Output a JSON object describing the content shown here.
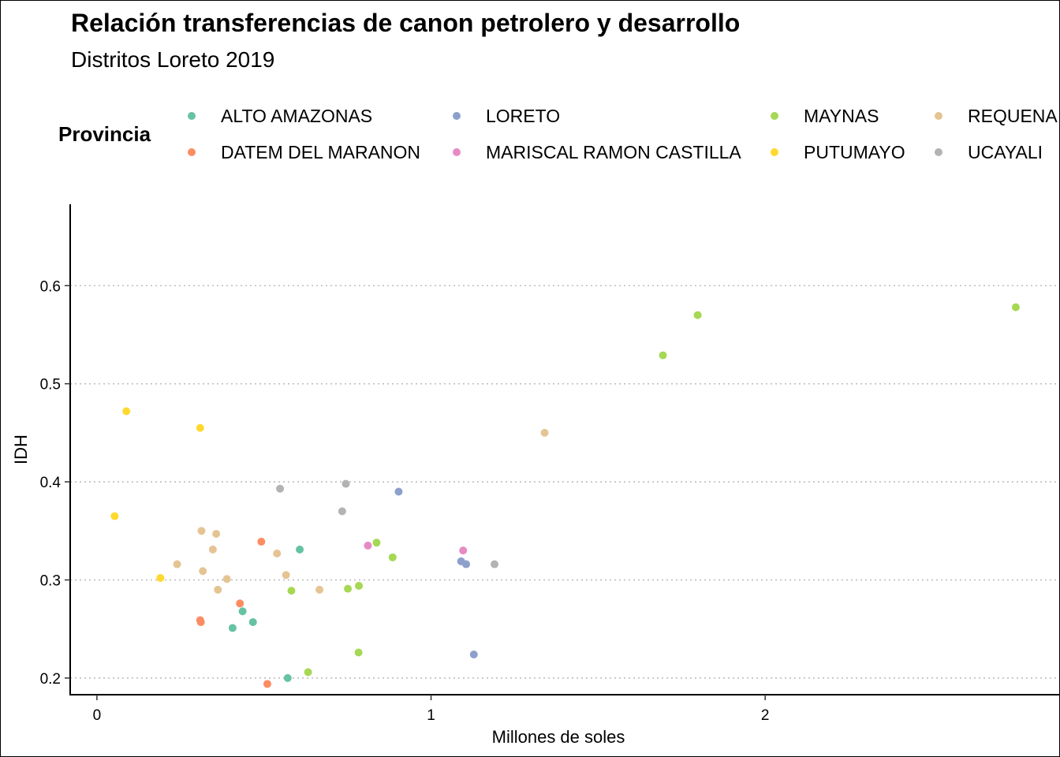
{
  "chart_data": {
    "type": "scatter",
    "title": "Relación transferencias de canon petrolero y desarrollo",
    "subtitle": "Distritos Loreto 2019",
    "xlabel": "Millones de soles",
    "ylabel": "IDH",
    "xlim": [
      -0.08,
      2.88
    ],
    "ylim": [
      0.183,
      0.683
    ],
    "xticks": [
      0,
      1,
      2
    ],
    "xtick_labels": [
      "0",
      "1",
      "2"
    ],
    "yticks": [
      0.2,
      0.3,
      0.4,
      0.5,
      0.6
    ],
    "ytick_labels": [
      "0.2",
      "0.3",
      "0.4",
      "0.5",
      "0.6"
    ],
    "grid": "horizontal dotted major",
    "legend": {
      "title": "Provincia",
      "position": "top",
      "entries": [
        {
          "name": "ALTO AMAZONAS",
          "color": "#66C2A5"
        },
        {
          "name": "DATEM DEL MARANON",
          "color": "#FC8D62"
        },
        {
          "name": "LORETO",
          "color": "#8DA0CB"
        },
        {
          "name": "MARISCAL RAMON CASTILLA",
          "color": "#E78AC3"
        },
        {
          "name": "MAYNAS",
          "color": "#A6D854"
        },
        {
          "name": "PUTUMAYO",
          "color": "#FFD92F"
        },
        {
          "name": "REQUENA",
          "color": "#E5C494"
        },
        {
          "name": "UCAYALI",
          "color": "#B3B3B3"
        }
      ]
    },
    "series": [
      {
        "name": "ALTO AMAZONAS",
        "color": "#66C2A5",
        "points": [
          [
            0.406,
            0.251
          ],
          [
            0.436,
            0.268
          ],
          [
            0.467,
            0.257
          ],
          [
            0.571,
            0.2
          ],
          [
            0.607,
            0.331
          ]
        ]
      },
      {
        "name": "DATEM DEL MARANON",
        "color": "#FC8D62",
        "points": [
          [
            0.309,
            0.259
          ],
          [
            0.311,
            0.257
          ],
          [
            0.428,
            0.276
          ],
          [
            0.492,
            0.339
          ],
          [
            0.51,
            0.194
          ]
        ]
      },
      {
        "name": "LORETO",
        "color": "#8DA0CB",
        "points": [
          [
            0.903,
            0.39
          ],
          [
            1.09,
            0.319
          ],
          [
            1.105,
            0.316
          ],
          [
            1.128,
            0.224
          ]
        ]
      },
      {
        "name": "MARISCAL RAMON CASTILLA",
        "color": "#E78AC3",
        "points": [
          [
            0.811,
            0.335
          ],
          [
            1.096,
            0.33
          ]
        ]
      },
      {
        "name": "MAYNAS",
        "color": "#A6D854",
        "points": [
          [
            0.582,
            0.289
          ],
          [
            0.632,
            0.206
          ],
          [
            0.751,
            0.291
          ],
          [
            0.783,
            0.226
          ],
          [
            0.784,
            0.294
          ],
          [
            0.837,
            0.338
          ],
          [
            0.885,
            0.323
          ],
          [
            1.694,
            0.529
          ],
          [
            1.798,
            0.57
          ],
          [
            2.75,
            0.578
          ]
        ]
      },
      {
        "name": "PUTUMAYO",
        "color": "#FFD92F",
        "points": [
          [
            0.053,
            0.365
          ],
          [
            0.088,
            0.472
          ],
          [
            0.19,
            0.302
          ],
          [
            0.309,
            0.455
          ]
        ]
      },
      {
        "name": "REQUENA",
        "color": "#E5C494",
        "points": [
          [
            0.24,
            0.316
          ],
          [
            0.313,
            0.35
          ],
          [
            0.317,
            0.309
          ],
          [
            0.347,
            0.331
          ],
          [
            0.357,
            0.347
          ],
          [
            0.362,
            0.29
          ],
          [
            0.389,
            0.301
          ],
          [
            0.539,
            0.327
          ],
          [
            0.566,
            0.305
          ],
          [
            0.666,
            0.29
          ],
          [
            1.34,
            0.45
          ]
        ]
      },
      {
        "name": "UCAYALI",
        "color": "#B3B3B3",
        "points": [
          [
            0.548,
            0.393
          ],
          [
            0.734,
            0.37
          ],
          [
            0.745,
            0.398
          ],
          [
            1.19,
            0.316
          ]
        ]
      }
    ]
  }
}
